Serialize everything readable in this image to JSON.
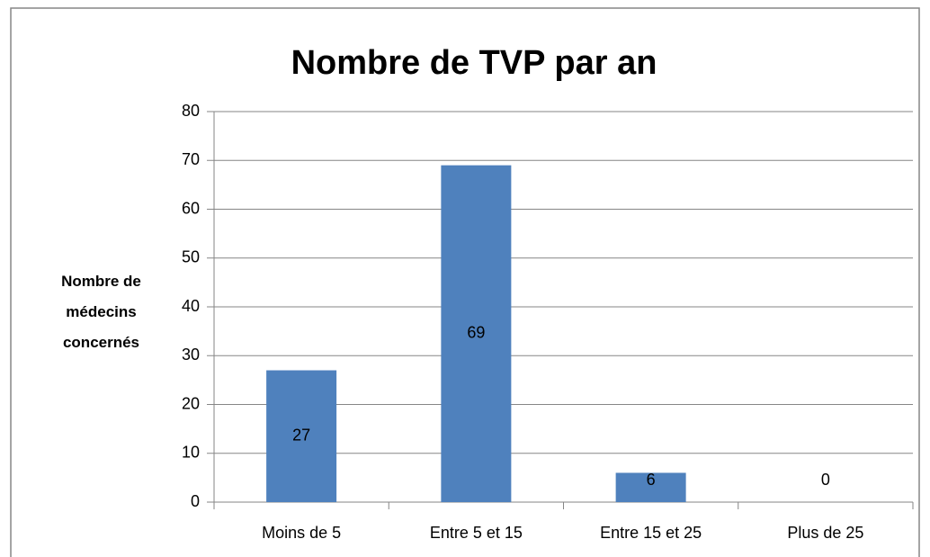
{
  "chart_data": {
    "type": "bar",
    "title": "Nombre de TVP par an",
    "y_label": "Nombre de médecins concernés",
    "categories": [
      "Moins de 5",
      "Entre 5 et 15",
      "Entre 15 et 25",
      "Plus de 25"
    ],
    "values": [
      27,
      69,
      6,
      0
    ],
    "color": "#4f81bd",
    "ylim": [
      0,
      80
    ],
    "yticks": [
      0,
      10,
      20,
      30,
      40,
      50,
      60,
      70,
      80
    ],
    "grid": true
  }
}
